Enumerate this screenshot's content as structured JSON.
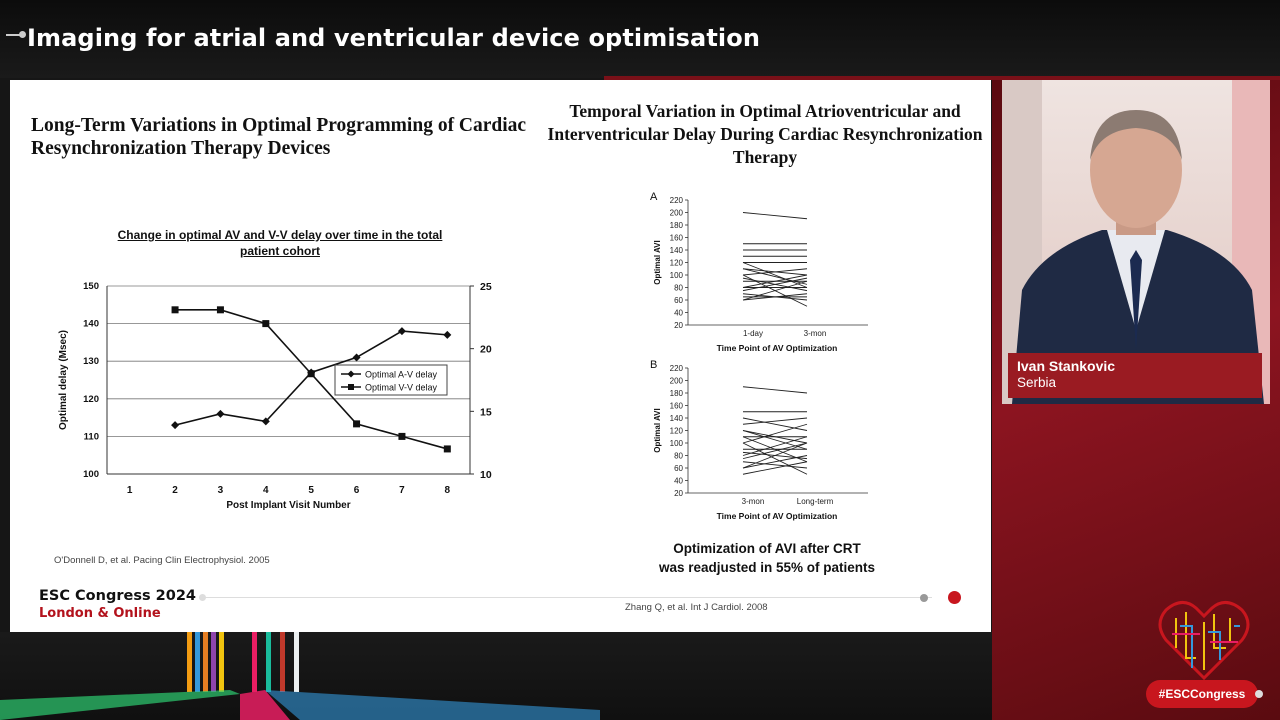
{
  "session_title": "Imaging for atrial and ventricular device optimisation",
  "slide": {
    "left_title": "Long-Term Variations in Optimal Programming of Cardiac Resynchronization Therapy Devices",
    "left_chart_title": "Change in optimal AV and V-V delay over time in the total patient cohort",
    "left_citation": "O'Donnell D, et al. Pacing Clin Electrophysiol. 2005",
    "right_title": "Temporal Variation in Optimal Atrioventricular and Interventricular Delay During Cardiac Resynchronization Therapy",
    "summary_line1": "Optimization of AVI after CRT",
    "summary_line2": "was readjusted in 55% of patients",
    "right_citation": "Zhang Q, et al. Int J Cardiol. 2008",
    "brand_line1": "ESC Congress 2024",
    "brand_line2": "London & Online"
  },
  "speaker": {
    "name": "Ivan Stankovic",
    "country": "Serbia"
  },
  "hashtag": "#ESCCongress",
  "colors": {
    "accent_red": "#c8161e",
    "speaker_bar": "#9a1b22"
  },
  "chart_data": [
    {
      "type": "line",
      "title": "Change in optimal AV and V-V delay over time in the total patient cohort",
      "xlabel": "Post Implant Visit Number",
      "ylabel": "Optimal delay (Msec)",
      "x_ticks": [
        "1",
        "2",
        "3",
        "4",
        "5",
        "6",
        "7",
        "8"
      ],
      "y_ticks": [
        "100",
        "110",
        "120",
        "130",
        "140",
        "150"
      ],
      "y2_ticks": [
        "10",
        "15",
        "20",
        "25"
      ],
      "ylim": [
        100,
        150
      ],
      "y2lim": [
        10,
        25
      ],
      "legend_position": "center-right",
      "series": [
        {
          "name": "Optimal A-V delay",
          "axis": "left",
          "marker": "diamond",
          "x": [
            2,
            3,
            4,
            5,
            6,
            7,
            8
          ],
          "values": [
            113,
            116,
            114,
            127,
            131,
            138,
            137
          ]
        },
        {
          "name": "Optimal V-V delay",
          "axis": "right",
          "marker": "square",
          "x": [
            2,
            3,
            4,
            5,
            6,
            7,
            8
          ],
          "values": [
            23.1,
            23.1,
            22,
            18,
            14,
            13,
            12
          ]
        }
      ]
    },
    {
      "type": "line",
      "panel_label": "A",
      "xlabel": "Time Point of AV Optimization",
      "ylabel": "Optimal AVI",
      "categories": [
        "1-day",
        "3-mon"
      ],
      "y_ticks": [
        "20",
        "40",
        "60",
        "80",
        "100",
        "120",
        "140",
        "160",
        "180",
        "200",
        "220"
      ],
      "ylim": [
        20,
        220
      ],
      "pairs": [
        [
          200,
          190
        ],
        [
          150,
          150
        ],
        [
          140,
          140
        ],
        [
          130,
          130
        ],
        [
          120,
          120
        ],
        [
          110,
          100
        ],
        [
          100,
          110
        ],
        [
          90,
          90
        ],
        [
          120,
          80
        ],
        [
          80,
          100
        ],
        [
          70,
          60
        ],
        [
          60,
          70
        ],
        [
          100,
          50
        ],
        [
          80,
          80
        ],
        [
          110,
          85
        ],
        [
          75,
          95
        ],
        [
          65,
          65
        ],
        [
          95,
          75
        ],
        [
          60,
          90
        ]
      ]
    },
    {
      "type": "line",
      "panel_label": "B",
      "xlabel": "Time Point of AV Optimization",
      "ylabel": "Optimal AVI",
      "categories": [
        "3-mon",
        "Long-term"
      ],
      "y_ticks": [
        "20",
        "40",
        "60",
        "80",
        "100",
        "120",
        "140",
        "160",
        "180",
        "200",
        "220"
      ],
      "ylim": [
        20,
        220
      ],
      "pairs": [
        [
          190,
          180
        ],
        [
          150,
          150
        ],
        [
          140,
          120
        ],
        [
          130,
          140
        ],
        [
          120,
          100
        ],
        [
          110,
          110
        ],
        [
          100,
          130
        ],
        [
          90,
          90
        ],
        [
          80,
          110
        ],
        [
          70,
          60
        ],
        [
          60,
          80
        ],
        [
          50,
          70
        ],
        [
          100,
          50
        ],
        [
          120,
          90
        ],
        [
          75,
          100
        ],
        [
          85,
          75
        ],
        [
          110,
          70
        ],
        [
          60,
          100
        ]
      ]
    }
  ]
}
